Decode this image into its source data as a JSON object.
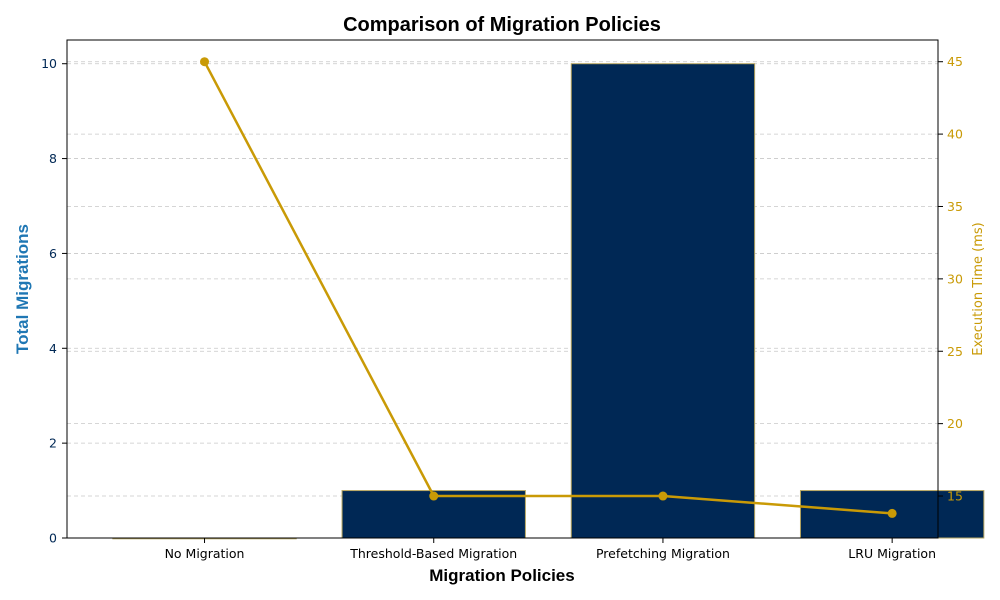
{
  "chart_data": {
    "type": "bar+line",
    "title": "Comparison of Migration Policies",
    "xlabel": "Migration Policies",
    "ylabel": "Total Migrations",
    "ylabel_right": "Execution Time (ms)",
    "categories": [
      "No Migration",
      "Threshold-Based Migration",
      "Prefetching Migration",
      "LRU Migration"
    ],
    "bar_series": {
      "name": "Total Migrations",
      "values": [
        0,
        1,
        10,
        1
      ]
    },
    "line_series": {
      "name": "Execution Time (ms)",
      "values": [
        45,
        15,
        15,
        13.8
      ]
    },
    "ylim_left": [
      0,
      10.5
    ],
    "ylim_right": [
      12.1,
      46.5
    ],
    "yticks_left": [
      "0",
      "2",
      "4",
      "6",
      "8",
      "10"
    ],
    "yticks_right": [
      "15",
      "20",
      "25",
      "30",
      "35",
      "40",
      "45"
    ],
    "grid": "horizontal-dashed",
    "colors": {
      "bar": "#002855",
      "bar_edge": "#b5a45f",
      "line": "#c99a06",
      "ylabel_left": "#1f77b4",
      "tick_left": "#002855",
      "grid": "#c8c8c8"
    }
  }
}
